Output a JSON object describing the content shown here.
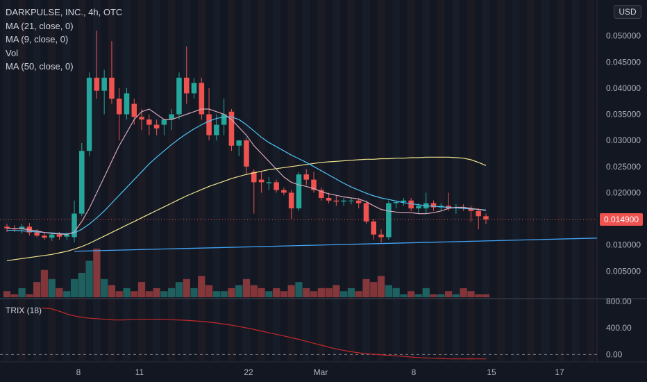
{
  "legend": {
    "title": "DARKPULSE, INC., 4h, OTC",
    "ma21": "MA (21, close, 0)",
    "ma9": "MA (9, close, 0)",
    "vol": "Vol",
    "ma50": "MA (50, close, 0)"
  },
  "currency": "USD",
  "last_price": "0.014900",
  "trix_label": "TRIX (18)",
  "colors": {
    "background": "#131722",
    "up": "#26a69a",
    "down": "#ef5350",
    "ma9": "#d4a5b4",
    "ma21": "#4fc3f7",
    "ma50": "#f0e68c",
    "trendline": "#42a5f5",
    "trix": "#c62828"
  },
  "chart_data": {
    "type": "candlestick",
    "x_ticks": [
      "8",
      "11",
      "22",
      "Mar",
      "8",
      "15",
      "17"
    ],
    "price_axis": [
      "0.050000",
      "0.045000",
      "0.040000",
      "0.035000",
      "0.030000",
      "0.025000",
      "0.020000",
      "0.010000",
      "0.005000"
    ],
    "price_range": [
      0.0,
      0.055
    ],
    "candles": [
      [
        0.0135,
        0.014,
        0.0125,
        0.0132
      ],
      [
        0.0132,
        0.0138,
        0.0125,
        0.013
      ],
      [
        0.013,
        0.014,
        0.0122,
        0.0135
      ],
      [
        0.0135,
        0.0142,
        0.0118,
        0.0124
      ],
      [
        0.0124,
        0.013,
        0.0115,
        0.0118
      ],
      [
        0.0118,
        0.0125,
        0.011,
        0.0114
      ],
      [
        0.0114,
        0.0122,
        0.0108,
        0.012
      ],
      [
        0.012,
        0.0125,
        0.011,
        0.0116
      ],
      [
        0.0116,
        0.0124,
        0.011,
        0.012
      ],
      [
        0.0115,
        0.0185,
        0.0105,
        0.016
      ],
      [
        0.016,
        0.0295,
        0.0155,
        0.028
      ],
      [
        0.028,
        0.043,
        0.027,
        0.042
      ],
      [
        0.042,
        0.051,
        0.038,
        0.0395
      ],
      [
        0.0395,
        0.0435,
        0.035,
        0.042
      ],
      [
        0.042,
        0.049,
        0.037,
        0.038
      ],
      [
        0.038,
        0.04,
        0.03,
        0.035
      ],
      [
        0.035,
        0.04,
        0.034,
        0.039
      ],
      [
        0.037,
        0.038,
        0.033,
        0.0345
      ],
      [
        0.0345,
        0.036,
        0.032,
        0.034
      ],
      [
        0.034,
        0.035,
        0.031,
        0.033
      ],
      [
        0.033,
        0.034,
        0.031,
        0.0323
      ],
      [
        0.033,
        0.034,
        0.031,
        0.034
      ],
      [
        0.034,
        0.036,
        0.032,
        0.035
      ],
      [
        0.035,
        0.043,
        0.034,
        0.042
      ],
      [
        0.042,
        0.048,
        0.037,
        0.039
      ],
      [
        0.039,
        0.042,
        0.038,
        0.041
      ],
      [
        0.041,
        0.042,
        0.034,
        0.035
      ],
      [
        0.035,
        0.04,
        0.03,
        0.031
      ],
      [
        0.031,
        0.035,
        0.03,
        0.033
      ],
      [
        0.033,
        0.038,
        0.031,
        0.035
      ],
      [
        0.0355,
        0.036,
        0.028,
        0.029
      ],
      [
        0.029,
        0.03,
        0.027,
        0.03
      ],
      [
        0.03,
        0.0305,
        0.0235,
        0.025
      ],
      [
        0.024,
        0.0245,
        0.016,
        0.022
      ],
      [
        0.0225,
        0.024,
        0.02,
        0.022
      ],
      [
        0.0218,
        0.023,
        0.0205,
        0.022
      ],
      [
        0.022,
        0.0225,
        0.02,
        0.0205
      ],
      [
        0.0205,
        0.021,
        0.0195,
        0.02
      ],
      [
        0.02,
        0.0205,
        0.015,
        0.017
      ],
      [
        0.017,
        0.024,
        0.0165,
        0.0235
      ],
      [
        0.0235,
        0.0245,
        0.0215,
        0.0225
      ],
      [
        0.0225,
        0.024,
        0.02,
        0.0205
      ],
      [
        0.0205,
        0.021,
        0.0185,
        0.019
      ],
      [
        0.019,
        0.02,
        0.018,
        0.0185
      ],
      [
        0.0185,
        0.0195,
        0.0175,
        0.0183
      ],
      [
        0.0183,
        0.019,
        0.0175,
        0.0185
      ],
      [
        0.0185,
        0.019,
        0.0178,
        0.0185
      ],
      [
        0.0185,
        0.019,
        0.017,
        0.018
      ],
      [
        0.018,
        0.0185,
        0.014,
        0.0145
      ],
      [
        0.0145,
        0.015,
        0.011,
        0.012
      ],
      [
        0.012,
        0.013,
        0.0105,
        0.0115
      ],
      [
        0.0115,
        0.0185,
        0.011,
        0.018
      ],
      [
        0.018,
        0.0185,
        0.017,
        0.0182
      ],
      [
        0.0182,
        0.019,
        0.0175,
        0.0185
      ],
      [
        0.0185,
        0.019,
        0.0165,
        0.017
      ],
      [
        0.017,
        0.018,
        0.016,
        0.0175
      ],
      [
        0.017,
        0.02,
        0.016,
        0.018
      ],
      [
        0.018,
        0.0185,
        0.0165,
        0.0172
      ],
      [
        0.0172,
        0.018,
        0.0165,
        0.0175
      ],
      [
        0.0175,
        0.02,
        0.0165,
        0.017
      ],
      [
        0.017,
        0.0178,
        0.016,
        0.0172
      ],
      [
        0.0172,
        0.0178,
        0.0165,
        0.017
      ],
      [
        0.017,
        0.0175,
        0.0145,
        0.0165
      ],
      [
        0.0165,
        0.017,
        0.013,
        0.0155
      ],
      [
        0.0155,
        0.016,
        0.014,
        0.0149
      ]
    ],
    "volume": [
      2,
      1,
      3,
      1,
      5,
      9,
      6,
      3,
      2,
      6,
      8,
      12,
      16,
      6,
      4,
      2,
      3,
      2,
      5,
      2,
      3,
      2,
      3,
      5,
      6,
      3,
      7,
      4,
      2,
      2,
      3,
      4,
      6,
      4,
      3,
      2,
      3,
      2,
      4,
      5,
      3,
      2,
      3,
      3,
      4,
      2,
      3,
      2,
      6,
      5,
      7,
      4,
      3,
      1,
      2,
      1,
      3,
      1,
      1,
      2,
      1,
      3,
      2,
      1,
      1
    ],
    "ma9": [
      0.0132,
      0.0131,
      0.0131,
      0.0129,
      0.0127,
      0.0124,
      0.0122,
      0.0121,
      0.012,
      0.0125,
      0.0145,
      0.017,
      0.02,
      0.023,
      0.026,
      0.029,
      0.0315,
      0.034,
      0.0355,
      0.036,
      0.035,
      0.034,
      0.034,
      0.0345,
      0.035,
      0.0355,
      0.036,
      0.036,
      0.0355,
      0.035,
      0.034,
      0.0325,
      0.031,
      0.029,
      0.0275,
      0.026,
      0.0245,
      0.023,
      0.022,
      0.0215,
      0.0212,
      0.0208,
      0.0202,
      0.0198,
      0.0195,
      0.0192,
      0.019,
      0.0188,
      0.0183,
      0.0175,
      0.0168,
      0.0165,
      0.0163,
      0.0162,
      0.0162,
      0.016,
      0.016,
      0.0162,
      0.0165,
      0.017,
      0.0172,
      0.0172,
      0.017,
      0.0168,
      0.0166
    ],
    "ma21": [
      0.0128,
      0.0128,
      0.0127,
      0.0126,
      0.0125,
      0.0124,
      0.0123,
      0.0122,
      0.0121,
      0.0123,
      0.013,
      0.014,
      0.0152,
      0.0165,
      0.018,
      0.0195,
      0.021,
      0.0225,
      0.024,
      0.0255,
      0.0268,
      0.028,
      0.0292,
      0.0303,
      0.0313,
      0.0322,
      0.033,
      0.0337,
      0.0342,
      0.0345,
      0.0345,
      0.034,
      0.033,
      0.0318,
      0.0306,
      0.0296,
      0.0288,
      0.028,
      0.0272,
      0.0265,
      0.0258,
      0.025,
      0.0242,
      0.0234,
      0.0226,
      0.0218,
      0.0211,
      0.0205,
      0.0199,
      0.0194,
      0.019,
      0.0187,
      0.0184,
      0.0181,
      0.0179,
      0.0177,
      0.0175,
      0.0174,
      0.0173,
      0.0172,
      0.0171,
      0.017,
      0.0169,
      0.0168,
      0.0167
    ],
    "ma50": [
      0.007,
      0.0072,
      0.0074,
      0.0076,
      0.0078,
      0.008,
      0.0082,
      0.0085,
      0.0088,
      0.0092,
      0.0097,
      0.0103,
      0.011,
      0.0117,
      0.0124,
      0.0131,
      0.0138,
      0.0145,
      0.0152,
      0.0159,
      0.0166,
      0.0173,
      0.018,
      0.0187,
      0.0194,
      0.02,
      0.0206,
      0.0212,
      0.0217,
      0.0222,
      0.0227,
      0.0231,
      0.0235,
      0.0238,
      0.0241,
      0.0244,
      0.0246,
      0.0248,
      0.025,
      0.0252,
      0.0254,
      0.0256,
      0.0258,
      0.0259,
      0.026,
      0.0261,
      0.0262,
      0.0263,
      0.0264,
      0.0264,
      0.0265,
      0.0265,
      0.0266,
      0.0266,
      0.0267,
      0.0267,
      0.0268,
      0.0268,
      0.0268,
      0.0268,
      0.0267,
      0.0266,
      0.0263,
      0.0258,
      0.0252
    ],
    "trendline": [
      [
        0.0088,
        9
      ],
      [
        0.0128,
        120
      ]
    ],
    "trix": [
      700,
      690,
      650,
      600,
      570,
      550,
      540,
      530,
      520,
      520,
      525,
      530,
      530,
      528,
      525,
      520,
      515,
      505,
      495,
      480,
      460,
      440,
      415,
      390,
      360,
      330,
      300,
      270,
      240,
      205,
      170,
      135,
      100,
      70,
      45,
      25,
      10,
      0,
      -10,
      -20,
      -30,
      -40,
      -50,
      -55,
      -60,
      -65,
      -65,
      -65,
      -65,
      -65
    ],
    "trix_axis": [
      "800.00",
      "400.00",
      "0.00"
    ],
    "trix_range": [
      -100,
      820
    ]
  }
}
